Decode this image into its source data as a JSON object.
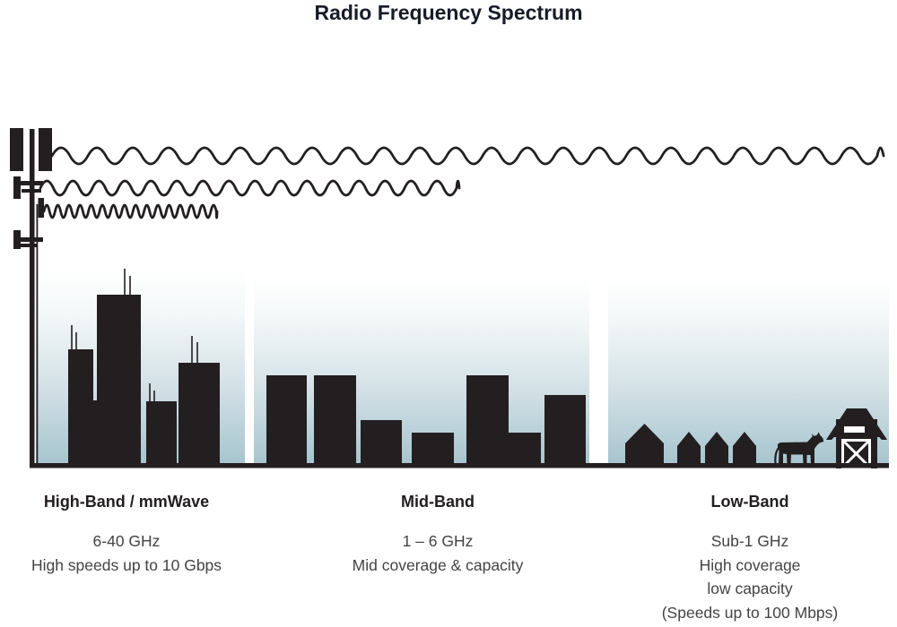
{
  "title": "Radio Frequency Spectrum",
  "bands": [
    {
      "name": "High-Band / mmWave",
      "lines": [
        "6-40 GHz",
        "High speeds up to 10 Gbps"
      ]
    },
    {
      "name": "Mid-Band",
      "lines": [
        "1 – 6 GHz",
        "Mid coverage & capacity"
      ]
    },
    {
      "name": "Low-Band",
      "lines": [
        "Sub-1 GHz",
        "High coverage",
        "low capacity",
        "(Speeds up to 100 Mbps)"
      ]
    }
  ],
  "icons": {
    "tower": "cell-tower-icon",
    "high_band_wave": "short-wavelength-wave-icon",
    "mid_band_wave": "medium-wavelength-wave-icon",
    "low_band_wave": "long-wavelength-wave-icon",
    "high_band_scene": "city-skyscrapers-icon",
    "mid_band_scene": "midrise-buildings-icon",
    "low_band_scene": "houses-farm-icon",
    "cow": "cow-icon",
    "barn": "barn-icon"
  },
  "colors": {
    "ink": "#231f20",
    "title_text": "#161c28",
    "body_text": "#434345",
    "sky_top": "#ffffff",
    "sky_bottom": "#a6c4ce"
  }
}
